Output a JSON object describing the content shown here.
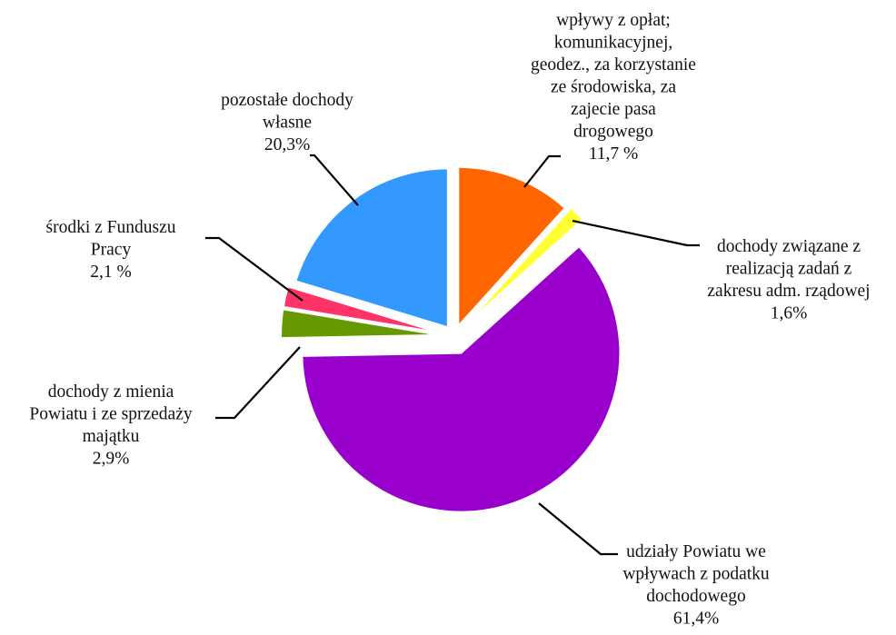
{
  "chart_data": {
    "type": "pie",
    "title": "",
    "legend": "none",
    "slices": [
      {
        "name": "wpływy z opłat; komunikacyjnej, geodez., za korzystanie ze środowiska, za zajecie pasa drogowego",
        "value": 11.7,
        "color": "#ff6600",
        "label_lines": [
          "wpływy z opłat;",
          "komunikacyjnej,",
          "geodez., za korzystanie",
          "ze środowiska, za",
          "zajecie pasa",
          "drogowego",
          "11,7 %"
        ]
      },
      {
        "name": "dochody związane z realizacją zadań z zakresu adm. rządowej",
        "value": 1.6,
        "color": "#ffff33",
        "label_lines": [
          "dochody związane z",
          "realizacją zadań z",
          "zakresu adm. rządowej",
          "1,6%"
        ]
      },
      {
        "name": "udziały Powiatu we wpływach z podatku dochodowego",
        "value": 61.4,
        "color": "#9900cc",
        "label_lines": [
          "udziały Powiatu we",
          "wpływach z podatku",
          "dochodowego",
          "61,4%"
        ]
      },
      {
        "name": "dochody z mienia Powiatu i ze sprzedaży majątku",
        "value": 2.9,
        "color": "#669900",
        "label_lines": [
          "dochody z mienia",
          "Powiatu i ze sprzedaży",
          "majątku",
          "2,9%"
        ]
      },
      {
        "name": "środki z Funduszu Pracy",
        "value": 2.1,
        "color": "#ff3366",
        "label_lines": [
          "środki z Funduszu",
          "Pracy",
          "2,1 %"
        ]
      },
      {
        "name": "pozostałe dochody własne",
        "value": 20.3,
        "color": "#3399ff",
        "label_lines": [
          "pozostałe dochody",
          "własne",
          "20,3%"
        ]
      }
    ]
  }
}
